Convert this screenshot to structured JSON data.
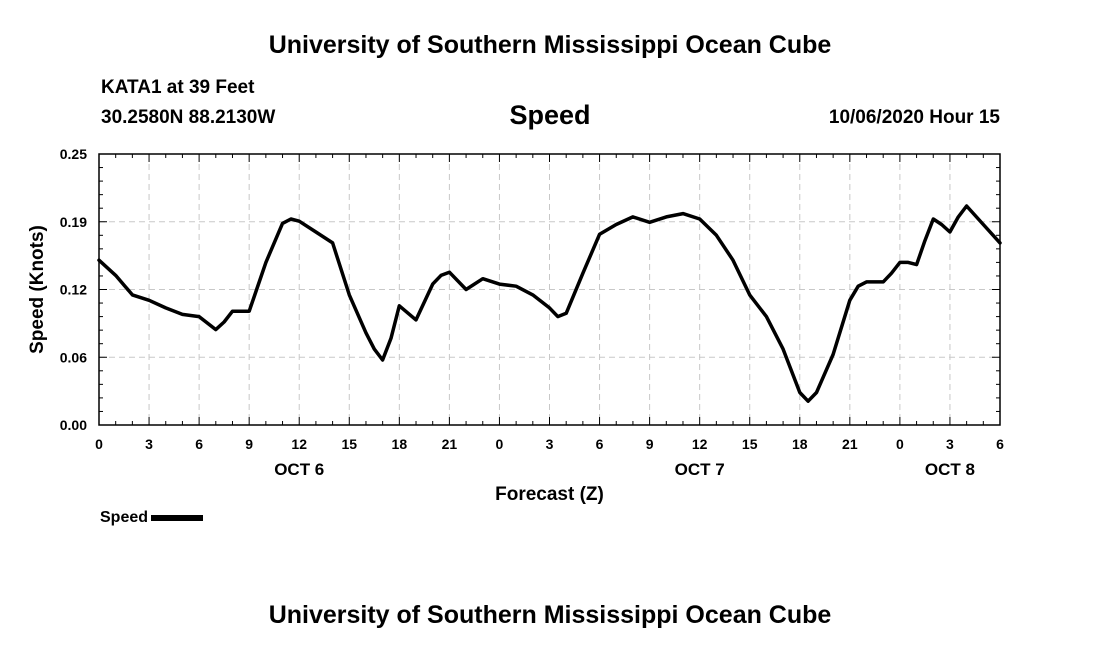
{
  "header": {
    "title_top": "University of Southern Mississippi Ocean Cube",
    "station": "KATA1 at 39 Feet",
    "coords": "30.2580N 88.2130W",
    "datetime": "10/06/2020 Hour 15"
  },
  "footer": {
    "title_bottom": "University of Southern Mississippi Ocean Cube"
  },
  "legend": {
    "label": "Speed"
  },
  "chart_data": {
    "type": "line",
    "title": "Speed",
    "xlabel": "Forecast (Z)",
    "ylabel": "Speed (Knots)",
    "xlim": [
      0,
      54
    ],
    "ylim": [
      0,
      0.25
    ],
    "grid": true,
    "x_ticks": [
      0,
      3,
      6,
      9,
      12,
      15,
      18,
      21,
      24,
      27,
      30,
      33,
      36,
      39,
      42,
      45,
      48,
      51,
      54
    ],
    "x_tick_labels": [
      "0",
      "3",
      "6",
      "9",
      "12",
      "15",
      "18",
      "21",
      "0",
      "3",
      "6",
      "9",
      "12",
      "15",
      "18",
      "21",
      "0",
      "3",
      "6"
    ],
    "y_ticks": [
      0,
      0.0625,
      0.125,
      0.1875,
      0.25
    ],
    "y_tick_labels": [
      "0.00",
      "0.06",
      "0.12",
      "0.19",
      "0.25"
    ],
    "date_labels": [
      {
        "x": 12,
        "label": "OCT 6"
      },
      {
        "x": 36,
        "label": "OCT 7"
      },
      {
        "x": 51,
        "label": "OCT 8"
      }
    ],
    "series": [
      {
        "name": "Speed",
        "color": "#000000",
        "x": [
          0,
          1,
          2,
          3,
          4,
          5,
          6,
          7,
          7.5,
          8,
          9,
          10,
          11,
          11.5,
          12,
          13,
          14,
          15,
          16,
          16.5,
          17,
          17.5,
          18,
          19,
          20,
          20.5,
          21,
          22,
          23,
          24,
          25,
          26,
          27,
          27.5,
          28,
          29,
          30,
          31,
          32,
          33,
          34,
          35,
          36,
          37,
          38,
          39,
          40,
          41,
          42,
          42.5,
          43,
          44,
          45,
          45.5,
          46,
          47,
          47.5,
          48,
          48.5,
          49,
          49.5,
          50,
          50.5,
          51,
          51.5,
          52,
          53,
          54
        ],
        "values": [
          0.152,
          0.138,
          0.12,
          0.115,
          0.108,
          0.102,
          0.1,
          0.088,
          0.095,
          0.105,
          0.105,
          0.15,
          0.186,
          0.19,
          0.188,
          0.178,
          0.168,
          0.12,
          0.085,
          0.07,
          0.06,
          0.08,
          0.11,
          0.097,
          0.13,
          0.138,
          0.141,
          0.125,
          0.135,
          0.13,
          0.128,
          0.12,
          0.108,
          0.1,
          0.103,
          0.14,
          0.176,
          0.185,
          0.192,
          0.187,
          0.192,
          0.195,
          0.19,
          0.175,
          0.152,
          0.12,
          0.1,
          0.07,
          0.03,
          0.022,
          0.03,
          0.065,
          0.115,
          0.128,
          0.132,
          0.132,
          0.14,
          0.15,
          0.15,
          0.148,
          0.17,
          0.19,
          0.185,
          0.178,
          0.192,
          0.202,
          0.185,
          0.168
        ]
      }
    ]
  }
}
